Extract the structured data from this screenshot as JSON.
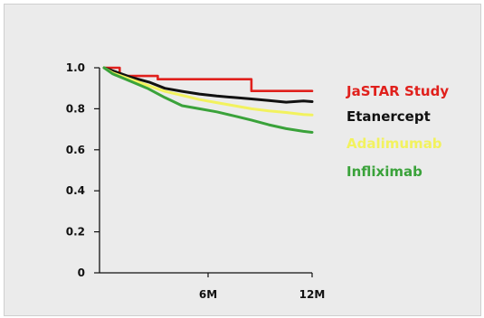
{
  "chart_data": {
    "type": "line",
    "title": "",
    "xlabel": "",
    "ylabel": "",
    "xlim": [
      0,
      12
    ],
    "ylim": [
      0,
      1.0
    ],
    "x_ticks": [
      {
        "value": 6,
        "label": "6M"
      },
      {
        "value": 12,
        "label": "12M"
      }
    ],
    "y_ticks": [
      {
        "value": 1.0,
        "label": "1.0"
      },
      {
        "value": 0.8,
        "label": "0.8"
      },
      {
        "value": 0.6,
        "label": "0.6"
      },
      {
        "value": 0.4,
        "label": "0.4"
      },
      {
        "value": 0.2,
        "label": "0.2"
      },
      {
        "value": 0,
        "label": "0"
      }
    ],
    "grid": false,
    "legend_position": "right",
    "series": [
      {
        "name": "JaSTAR Study",
        "color": "#e0201c",
        "step": true,
        "x": [
          0,
          0.9,
          3.1,
          8.5,
          12
        ],
        "y": [
          1.0,
          0.96,
          0.944,
          0.887,
          0.887
        ]
      },
      {
        "name": "Etanercept",
        "color": "#111111",
        "step": false,
        "x": [
          0,
          0.5,
          1.5,
          2.6,
          3.5,
          4.5,
          5.5,
          6.5,
          7.5,
          8.5,
          9.5,
          10.5,
          11.5,
          12
        ],
        "y": [
          1.0,
          0.985,
          0.955,
          0.93,
          0.9,
          0.885,
          0.872,
          0.862,
          0.855,
          0.848,
          0.84,
          0.832,
          0.838,
          0.835
        ]
      },
      {
        "name": "Adalimumab",
        "color": "#f2f25e",
        "step": false,
        "x": [
          0,
          0.5,
          1.5,
          2.5,
          3.5,
          4.5,
          5.5,
          6.5,
          7.5,
          8.5,
          9.5,
          10.5,
          11.5,
          12
        ],
        "y": [
          1.0,
          0.975,
          0.945,
          0.915,
          0.885,
          0.865,
          0.845,
          0.83,
          0.815,
          0.8,
          0.79,
          0.782,
          0.772,
          0.77
        ]
      },
      {
        "name": "Infliximab",
        "color": "#3aa23a",
        "step": false,
        "x": [
          0,
          0.5,
          1.5,
          2.5,
          3.5,
          4.5,
          5.5,
          6.5,
          7.5,
          8.5,
          9.5,
          10.5,
          11.5,
          12
        ],
        "y": [
          1.0,
          0.97,
          0.935,
          0.9,
          0.855,
          0.815,
          0.8,
          0.785,
          0.765,
          0.745,
          0.722,
          0.703,
          0.69,
          0.685
        ]
      }
    ]
  }
}
